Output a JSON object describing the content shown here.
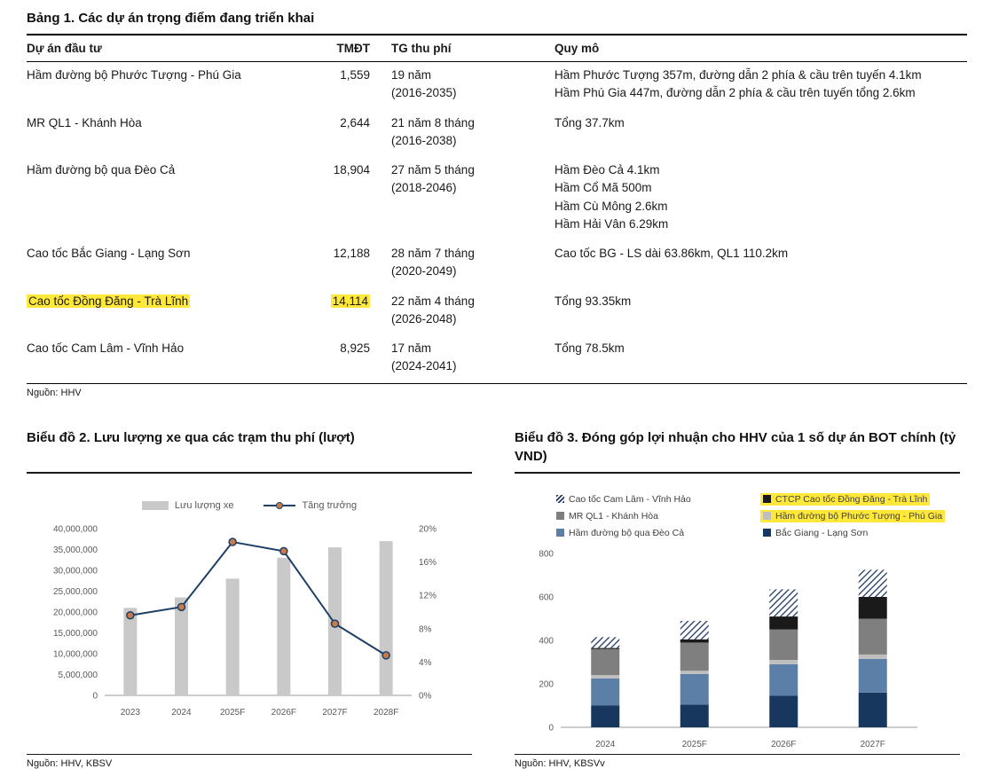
{
  "colors": {
    "highlight": "#ffe83a",
    "bar_gray": "#c9c9c9",
    "line_navy": "#1f4066",
    "marker_fill": "#c97a4a",
    "axis_text": "#595959"
  },
  "table": {
    "title": "Bảng 1. Các dự án trọng điểm đang triển khai",
    "columns": [
      "Dự án đầu tư",
      "TMĐT",
      "TG thu phí",
      "Quy mô"
    ],
    "rows": [
      {
        "project": "Hầm đường bộ Phước Tượng - Phú Gia",
        "tmdt": "1,559",
        "duration": "19 năm",
        "period": "(2016-2035)",
        "scale": [
          "Hầm Phước Tượng 357m, đường dẫn 2 phía & cầu trên tuyến 4.1km",
          "Hầm Phú Gia 447m, đường dẫn 2 phía & cầu trên tuyến tổng 2.6km"
        ],
        "highlight": false
      },
      {
        "project": "MR QL1 - Khánh Hòa",
        "tmdt": "2,644",
        "duration": "21 năm 8 tháng",
        "period": "(2016-2038)",
        "scale": [
          "Tổng 37.7km"
        ],
        "highlight": false
      },
      {
        "project": "Hầm đường bộ qua Đèo Cả",
        "tmdt": "18,904",
        "duration": "27 năm 5 tháng",
        "period": "(2018-2046)",
        "scale": [
          "Hầm Đèo Cả 4.1km",
          "Hầm Cổ Mã 500m",
          "Hầm Cù Mông 2.6km",
          "Hầm Hải Vân 6.29km"
        ],
        "highlight": false
      },
      {
        "project": "Cao tốc Bắc Giang - Lạng Sơn",
        "tmdt": "12,188",
        "duration": "28 năm 7 tháng",
        "period": "(2020-2049)",
        "scale": [
          "Cao tốc BG - LS dài 63.86km, QL1 110.2km"
        ],
        "highlight": false
      },
      {
        "project": "Cao tốc Đồng Đăng - Trà Lĩnh",
        "tmdt": "14,114",
        "duration": "22 năm 4 tháng",
        "period": "(2026-2048)",
        "scale": [
          "Tổng 93.35km"
        ],
        "highlight": true
      },
      {
        "project": "Cao tốc Cam Lâm - Vĩnh Hảo",
        "tmdt": "8,925",
        "duration": "17 năm",
        "period": "(2024-2041)",
        "scale": [
          "Tổng 78.5km"
        ],
        "highlight": false
      }
    ],
    "source": "Nguồn: HHV"
  },
  "chart_data": [
    {
      "id": "traffic-volume",
      "type": "bar+line",
      "title": "Biểu đồ 2. Lưu lượng xe qua các trạm thu phí (lượt)",
      "source": "Nguồn: HHV, KBSV",
      "categories": [
        "2023",
        "2024",
        "2025F",
        "2026F",
        "2027F",
        "2028F"
      ],
      "bar_series": {
        "name": "Lưu lượng xe",
        "color": "#c9c9c9",
        "values": [
          21000000,
          23500000,
          28000000,
          33000000,
          35500000,
          37000000
        ]
      },
      "line_series": {
        "name": "Tăng trưởng",
        "color": "#1f4066",
        "marker_color": "#c97a4a",
        "values": [
          9.6,
          10.6,
          18.4,
          17.3,
          8.6,
          4.8
        ]
      },
      "left_axis": {
        "min": 0,
        "max": 40000000,
        "step": 5000000
      },
      "right_axis": {
        "min": 0,
        "max": 20,
        "step": 4,
        "suffix": "%"
      },
      "grid": false,
      "legend_position": "top"
    },
    {
      "id": "bot-profit-contribution",
      "type": "stacked-bar",
      "title": "Biểu đồ 3. Đóng góp lợi nhuận cho HHV của 1 số dự án BOT chính (tỷ VND)",
      "source": "Nguồn: HHV, KBSVv",
      "categories": [
        "2024",
        "2025F",
        "2026F",
        "2027F"
      ],
      "y_axis": {
        "min": 0,
        "max": 800,
        "step": 200
      },
      "grid": false,
      "legend_position": "top",
      "series": [
        {
          "name": "Bắc Giang - Lạng Sơn",
          "color": "#17375e",
          "values": [
            100,
            105,
            145,
            160
          ],
          "highlight": false
        },
        {
          "name": "Hầm đường bộ qua Đèo Cả",
          "color": "#5b7fa6",
          "values": [
            125,
            140,
            145,
            155
          ],
          "highlight": false
        },
        {
          "name": "Hầm đường bộ Phước Tượng - Phú Gia",
          "color": "#bfbfbf",
          "values": [
            15,
            15,
            20,
            20
          ],
          "highlight": true
        },
        {
          "name": "MR QL1 - Khánh Hòa",
          "color": "#7f7f7f",
          "values": [
            120,
            130,
            140,
            165
          ],
          "highlight": false
        },
        {
          "name": "CTCP Cao tốc Đồng Đăng - Trà Lĩnh",
          "color": "#1a1a1a",
          "values": [
            5,
            15,
            60,
            100
          ],
          "highlight": true
        },
        {
          "name": "Cao tốc Cam Lâm - Vĩnh Hảo",
          "color": "#1f3864",
          "pattern": "stripe",
          "values": [
            50,
            85,
            125,
            125
          ],
          "highlight": false
        }
      ]
    }
  ]
}
